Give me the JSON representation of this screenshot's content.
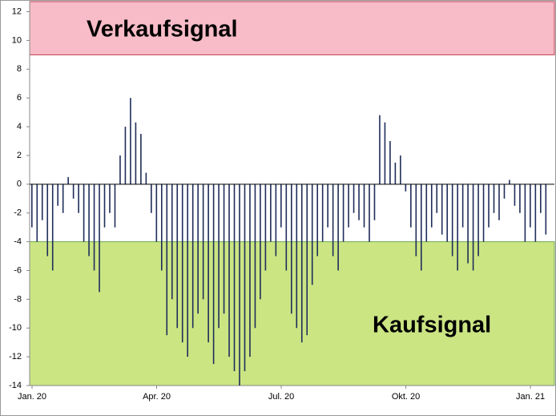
{
  "chart_data": {
    "type": "bar",
    "color": "#1f2d5a",
    "ylim": [
      -14,
      12.7
    ],
    "yticks": [
      -14,
      -12,
      -10,
      -8,
      -6,
      -4,
      -2,
      0,
      2,
      4,
      6,
      8,
      10,
      12
    ],
    "zones": [
      {
        "label": "Verkaufsignal",
        "from": 9,
        "to": 12.7,
        "color": "#f4a6b4"
      },
      {
        "label": "Kaufsignal",
        "from": -14,
        "to": -4,
        "color": "#b9dc5a"
      }
    ],
    "categories": [
      "Jan. 20",
      null,
      null,
      null,
      null,
      null,
      null,
      null,
      null,
      null,
      null,
      null,
      null,
      null,
      null,
      null,
      null,
      null,
      null,
      null,
      null,
      null,
      null,
      null,
      "Apr. 20",
      null,
      null,
      null,
      null,
      null,
      null,
      null,
      null,
      null,
      null,
      null,
      null,
      null,
      null,
      null,
      null,
      null,
      null,
      null,
      null,
      null,
      null,
      null,
      "Jul. 20",
      null,
      null,
      null,
      null,
      null,
      null,
      null,
      null,
      null,
      null,
      null,
      null,
      null,
      null,
      null,
      null,
      null,
      null,
      null,
      null,
      null,
      null,
      null,
      "Okt. 20",
      null,
      null,
      null,
      null,
      null,
      null,
      null,
      null,
      null,
      null,
      null,
      null,
      null,
      null,
      null,
      null,
      null,
      null,
      null,
      null,
      null,
      null,
      null,
      "Jan. 21",
      null,
      null,
      null
    ],
    "values": [
      -3,
      -4,
      -2.5,
      -5,
      -6,
      -1.5,
      -2,
      0.5,
      -1,
      -2,
      -4,
      -5,
      -6,
      -7.5,
      -3,
      -2,
      -3,
      2,
      4,
      6,
      4.3,
      3.5,
      0.8,
      -2,
      -4,
      -6,
      -10.5,
      -8,
      -10,
      -11,
      -12,
      -10,
      -9,
      -8,
      -11,
      -12.5,
      -10,
      -9,
      -12,
      -13,
      -14,
      -13,
      -12,
      -10,
      -8,
      -6,
      -4,
      -5,
      -3,
      -6,
      -9,
      -10,
      -11,
      -10.5,
      -7,
      -5,
      -4,
      -3,
      -5,
      -6,
      -4,
      -3,
      -2,
      -2.5,
      -3,
      -4,
      -2.5,
      4.8,
      4.3,
      3,
      1.5,
      2,
      -0.5,
      -3,
      -5,
      -6,
      -4,
      -3,
      -2,
      -3.5,
      -4,
      -5,
      -6,
      -3,
      -5.5,
      -6,
      -5,
      -4,
      -3,
      -2,
      -2.5,
      -1,
      0.3,
      -1.5,
      -2,
      -4,
      -3,
      -4,
      -2,
      -3.5
    ]
  }
}
